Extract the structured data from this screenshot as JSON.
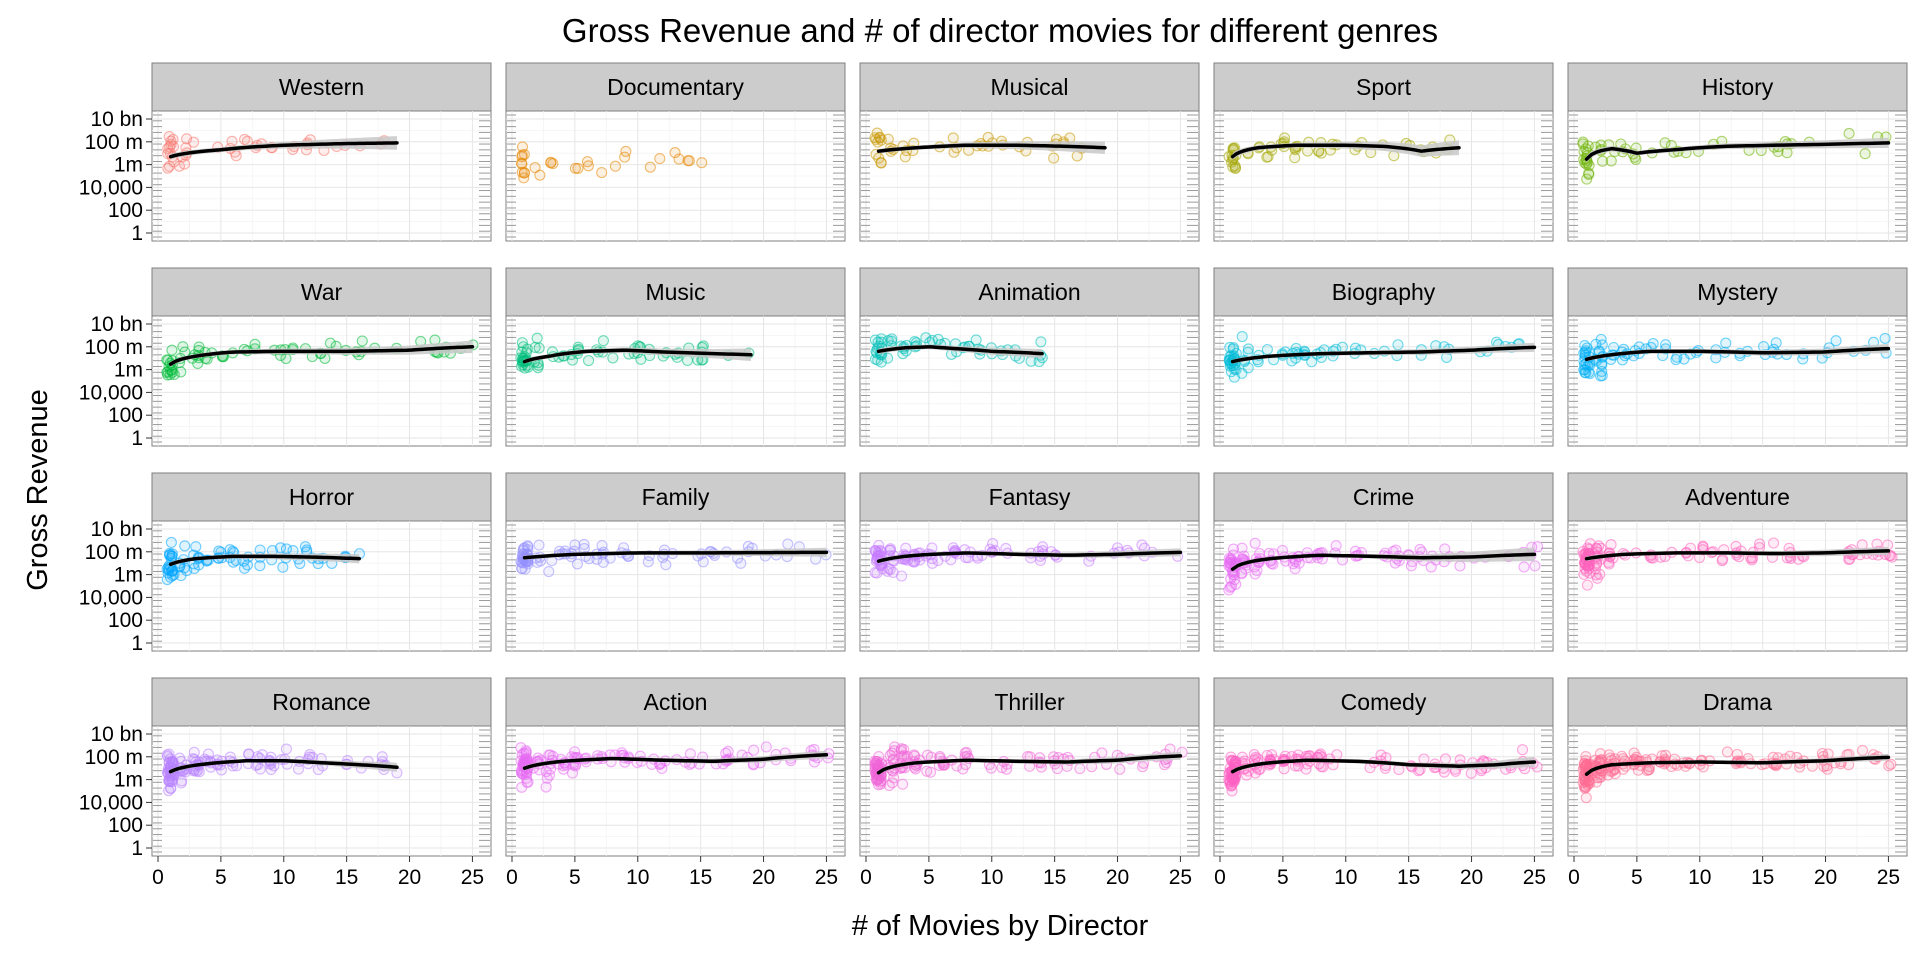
{
  "chart_data": {
    "type": "scatter",
    "title": "Gross Revenue and # of director movies for different genres",
    "xlabel": "# of Movies by Director",
    "ylabel": "Gross Revenue",
    "y_scale": "log10",
    "xlim": [
      0,
      26
    ],
    "ylim": [
      1,
      10000000000
    ],
    "x_ticks": [
      0,
      5,
      10,
      15,
      20,
      25
    ],
    "y_ticks": [
      {
        "value": 1,
        "label": "1"
      },
      {
        "value": 100,
        "label": "100"
      },
      {
        "value": 10000,
        "label": "10,000"
      },
      {
        "value": 1000000,
        "label": "1m"
      },
      {
        "value": 100000000,
        "label": "100 m"
      },
      {
        "value": 10000000000,
        "label": "10 bn"
      }
    ],
    "grid": true,
    "smoother": "loess with confidence band",
    "panels": [
      {
        "genre": "Western",
        "color": "#F8766D",
        "x_max": 19,
        "n_points": 45,
        "smooth_x": [
          1,
          5,
          10,
          15,
          19
        ],
        "smooth_y": [
          5000000,
          20000000,
          50000000,
          70000000,
          80000000
        ],
        "band_width": [
          0.25,
          0.2,
          0.3,
          0.45,
          0.6
        ]
      },
      {
        "genre": "Documentary",
        "color": "#E58700",
        "x_max": 15,
        "n_points": 30,
        "smooth_x": [],
        "smooth_y": [],
        "band_width": []
      },
      {
        "genre": "Musical",
        "color": "#C99800",
        "x_max": 19,
        "n_points": 45,
        "smooth_x": [
          1,
          4,
          8,
          12,
          16,
          19
        ],
        "smooth_y": [
          15000000,
          30000000,
          50000000,
          50000000,
          40000000,
          30000000
        ],
        "band_width": [
          0.2,
          0.18,
          0.25,
          0.35,
          0.45,
          0.55
        ]
      },
      {
        "genre": "Sport",
        "color": "#A3A500",
        "x_max": 19,
        "n_points": 55,
        "smooth_x": [
          1,
          3,
          6,
          10,
          13,
          16,
          19
        ],
        "smooth_y": [
          5000000,
          30000000,
          50000000,
          50000000,
          40000000,
          15000000,
          30000000
        ],
        "band_width": [
          0.3,
          0.2,
          0.2,
          0.3,
          0.4,
          0.5,
          0.65
        ]
      },
      {
        "genre": "History",
        "color": "#6BB100",
        "x_max": 25,
        "n_points": 55,
        "smooth_x": [
          1,
          2,
          3,
          5,
          8,
          12,
          16,
          20,
          25
        ],
        "smooth_y": [
          3000000,
          15000000,
          25000000,
          10000000,
          20000000,
          40000000,
          50000000,
          60000000,
          80000000
        ],
        "band_width": [
          0.3,
          0.25,
          0.25,
          0.2,
          0.2,
          0.25,
          0.3,
          0.35,
          0.45
        ]
      },
      {
        "genre": "War",
        "color": "#00BA38",
        "x_max": 25,
        "n_points": 70,
        "smooth_x": [
          1,
          3,
          6,
          10,
          15,
          20,
          25
        ],
        "smooth_y": [
          3000000,
          15000000,
          35000000,
          40000000,
          40000000,
          50000000,
          100000000
        ],
        "band_width": [
          0.2,
          0.18,
          0.2,
          0.25,
          0.3,
          0.4,
          0.55
        ]
      },
      {
        "genre": "Music",
        "color": "#00BF7D",
        "x_max": 19,
        "n_points": 70,
        "smooth_x": [
          1,
          3,
          6,
          9,
          12,
          16,
          19
        ],
        "smooth_y": [
          5000000,
          15000000,
          40000000,
          50000000,
          35000000,
          25000000,
          20000000
        ],
        "band_width": [
          0.2,
          0.18,
          0.2,
          0.25,
          0.3,
          0.4,
          0.55
        ]
      },
      {
        "genre": "Animation",
        "color": "#00C0B8",
        "x_max": 14,
        "n_points": 60,
        "smooth_x": [
          1,
          3,
          5,
          7,
          10,
          14
        ],
        "smooth_y": [
          40000000,
          80000000,
          100000000,
          70000000,
          40000000,
          25000000
        ],
        "band_width": [
          0.25,
          0.2,
          0.2,
          0.25,
          0.3,
          0.4
        ]
      },
      {
        "genre": "Biography",
        "color": "#00BCD8",
        "x_max": 25,
        "n_points": 80,
        "smooth_x": [
          1,
          4,
          8,
          12,
          16,
          20,
          25
        ],
        "smooth_y": [
          5000000,
          15000000,
          25000000,
          30000000,
          35000000,
          50000000,
          90000000
        ],
        "band_width": [
          0.2,
          0.15,
          0.18,
          0.22,
          0.25,
          0.3,
          0.4
        ]
      },
      {
        "genre": "Mystery",
        "color": "#00B0F6",
        "x_max": 25,
        "n_points": 85,
        "smooth_x": [
          1,
          3,
          6,
          10,
          15,
          20,
          25
        ],
        "smooth_y": [
          8000000,
          20000000,
          40000000,
          40000000,
          30000000,
          35000000,
          70000000
        ],
        "band_width": [
          0.2,
          0.15,
          0.18,
          0.2,
          0.25,
          0.3,
          0.4
        ]
      },
      {
        "genre": "Horror",
        "color": "#00A5FF",
        "x_max": 16,
        "n_points": 80,
        "smooth_x": [
          1,
          3,
          6,
          9,
          12,
          16
        ],
        "smooth_y": [
          8000000,
          25000000,
          40000000,
          40000000,
          35000000,
          25000000
        ],
        "band_width": [
          0.2,
          0.15,
          0.2,
          0.25,
          0.3,
          0.4
        ]
      },
      {
        "genre": "Family",
        "color": "#9590FF",
        "x_max": 25,
        "n_points": 90,
        "smooth_x": [
          1,
          5,
          10,
          15,
          20,
          25
        ],
        "smooth_y": [
          30000000,
          60000000,
          80000000,
          80000000,
          85000000,
          90000000
        ],
        "band_width": [
          0.2,
          0.15,
          0.18,
          0.22,
          0.3,
          0.4
        ]
      },
      {
        "genre": "Fantasy",
        "color": "#C77CFF",
        "x_max": 25,
        "n_points": 110,
        "smooth_x": [
          1,
          4,
          8,
          12,
          16,
          20,
          25
        ],
        "smooth_y": [
          15000000,
          50000000,
          80000000,
          60000000,
          50000000,
          60000000,
          90000000
        ],
        "band_width": [
          0.2,
          0.15,
          0.15,
          0.18,
          0.22,
          0.28,
          0.35
        ]
      },
      {
        "genre": "Crime",
        "color": "#E76BF3",
        "x_max": 25,
        "n_points": 120,
        "smooth_x": [
          1,
          4,
          8,
          12,
          16,
          20,
          25
        ],
        "smooth_y": [
          3000000,
          25000000,
          50000000,
          40000000,
          30000000,
          35000000,
          60000000
        ],
        "band_width": [
          0.2,
          0.15,
          0.15,
          0.2,
          0.3,
          0.45,
          0.6
        ]
      },
      {
        "genre": "Adventure",
        "color": "#FF62BC",
        "x_max": 25,
        "n_points": 120,
        "smooth_x": [
          1,
          4,
          8,
          12,
          16,
          20,
          25
        ],
        "smooth_y": [
          25000000,
          60000000,
          80000000,
          80000000,
          70000000,
          80000000,
          120000000
        ],
        "band_width": [
          0.2,
          0.15,
          0.15,
          0.18,
          0.22,
          0.28,
          0.35
        ]
      },
      {
        "genre": "Romance",
        "color": "#B983FF",
        "x_max": 19,
        "n_points": 130,
        "smooth_x": [
          1,
          4,
          7,
          10,
          13,
          16,
          19
        ],
        "smooth_y": [
          5000000,
          25000000,
          45000000,
          45000000,
          30000000,
          20000000,
          12000000
        ],
        "band_width": [
          0.2,
          0.15,
          0.15,
          0.18,
          0.22,
          0.3,
          0.4
        ]
      },
      {
        "genre": "Action",
        "color": "#E76BF3",
        "x_max": 25,
        "n_points": 140,
        "smooth_x": [
          1,
          4,
          8,
          12,
          16,
          20,
          25
        ],
        "smooth_y": [
          10000000,
          40000000,
          70000000,
          50000000,
          40000000,
          60000000,
          150000000
        ],
        "band_width": [
          0.2,
          0.15,
          0.15,
          0.18,
          0.22,
          0.28,
          0.35
        ]
      },
      {
        "genre": "Thriller",
        "color": "#F066D8",
        "x_max": 25,
        "n_points": 140,
        "smooth_x": [
          1,
          4,
          8,
          12,
          16,
          20,
          25
        ],
        "smooth_y": [
          4000000,
          30000000,
          50000000,
          40000000,
          35000000,
          50000000,
          120000000
        ],
        "band_width": [
          0.2,
          0.15,
          0.15,
          0.18,
          0.22,
          0.28,
          0.35
        ]
      },
      {
        "genre": "Comedy",
        "color": "#FF61C3",
        "x_max": 25,
        "n_points": 150,
        "smooth_x": [
          1,
          4,
          7,
          11,
          15,
          19,
          22,
          25
        ],
        "smooth_y": [
          5000000,
          30000000,
          50000000,
          40000000,
          20000000,
          15000000,
          20000000,
          35000000
        ],
        "band_width": [
          0.2,
          0.15,
          0.15,
          0.18,
          0.2,
          0.28,
          0.35,
          0.45
        ]
      },
      {
        "genre": "Drama",
        "color": "#FF6C91",
        "x_max": 25,
        "n_points": 170,
        "smooth_x": [
          1,
          3,
          6,
          10,
          15,
          20,
          25
        ],
        "smooth_y": [
          3000000,
          20000000,
          30000000,
          35000000,
          30000000,
          45000000,
          90000000
        ],
        "band_width": [
          0.2,
          0.12,
          0.12,
          0.15,
          0.18,
          0.22,
          0.3
        ]
      }
    ]
  }
}
